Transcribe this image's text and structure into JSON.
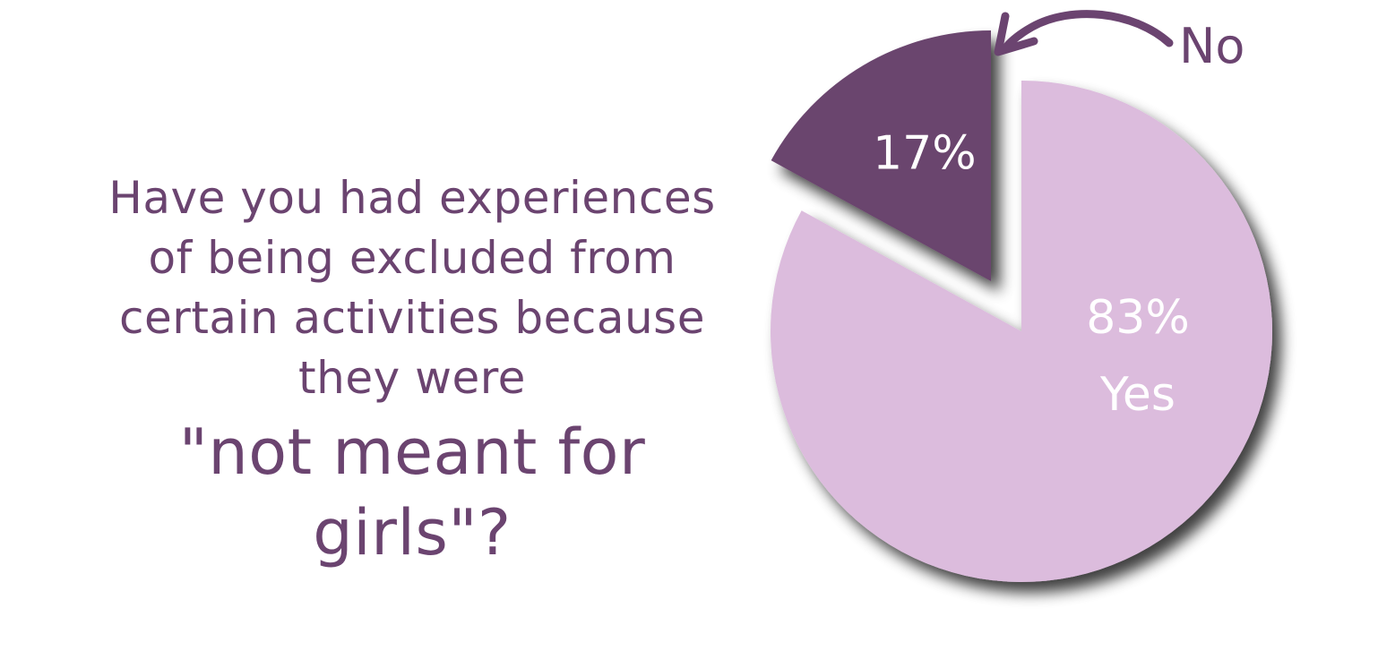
{
  "question": {
    "lines": [
      "Have you had experiences",
      "of being excluded from",
      "certain activities because",
      "they were"
    ],
    "emphasis": "\"not meant for girls\"?"
  },
  "chart_data": {
    "type": "pie",
    "slices": [
      {
        "label": "No",
        "value": 17,
        "value_label": "17%",
        "color": "#6b446e",
        "exploded": true
      },
      {
        "label": "Yes",
        "value": 83,
        "value_label": "83%",
        "color": "#dcbcdd",
        "exploded": false
      }
    ],
    "callout_label": "No"
  },
  "colors": {
    "text": "#6b4470",
    "slice_text": "#ffffff",
    "background": "#ffffff"
  }
}
